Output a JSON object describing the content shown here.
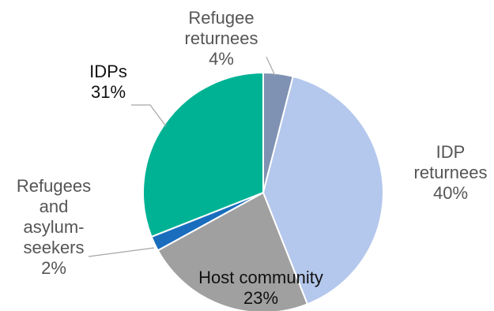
{
  "chart_data": {
    "type": "pie",
    "title": "",
    "legend": "none",
    "slices": [
      {
        "label": "Refugee returnees",
        "value": 4,
        "value_label": "4%",
        "color": "#7f92b3",
        "label_color": "#555555",
        "label_lines": [
          "Refugee",
          "returnees",
          "4%"
        ]
      },
      {
        "label": "IDP returnees",
        "value": 40,
        "value_label": "40%",
        "color": "#b4c7ec",
        "label_color": "#555555",
        "label_lines": [
          "IDP",
          "returnees",
          "40%"
        ]
      },
      {
        "label": "Host community",
        "value": 23,
        "value_label": "23%",
        "color": "#a0a0a0",
        "label_color": "#111111",
        "label_lines": [
          "Host community",
          "23%"
        ]
      },
      {
        "label": "Refugees and asylum-seekers",
        "value": 2,
        "value_label": "2%",
        "color": "#1a6dbd",
        "label_color": "#555555",
        "label_lines": [
          "Refugees",
          "and",
          "asylum-",
          "seekers",
          "2%"
        ]
      },
      {
        "label": "IDPs",
        "value": 31,
        "value_label": "31%",
        "color": "#00b294",
        "label_color": "#111111",
        "label_lines": [
          "IDPs",
          "31%"
        ]
      }
    ]
  }
}
